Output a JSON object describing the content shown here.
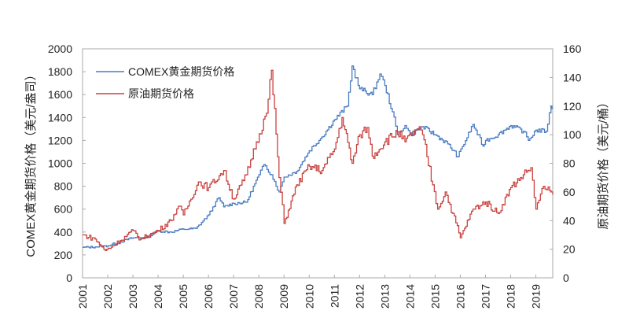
{
  "chart_data": {
    "type": "line",
    "xlabel": "",
    "y_left_label": "COMEX黄金期货价格（美元/盎司）",
    "y_right_label": "原油期货价格（美元/桶）",
    "x_ticks": [
      "2001",
      "2002",
      "2003",
      "2004",
      "2005",
      "2006",
      "2007",
      "2008",
      "2009",
      "2010",
      "2011",
      "2012",
      "2013",
      "2014",
      "2015",
      "2016",
      "2017",
      "2018",
      "2019"
    ],
    "xlim": [
      2001,
      2019.67
    ],
    "y_left_lim": [
      0,
      2000
    ],
    "y_left_ticks": [
      "0",
      "200",
      "400",
      "600",
      "800",
      "1000",
      "1200",
      "1400",
      "1600",
      "1800",
      "2000"
    ],
    "y_right_lim": [
      0,
      160
    ],
    "y_right_ticks": [
      "0",
      "20",
      "40",
      "60",
      "80",
      "100",
      "120",
      "140",
      "160"
    ],
    "legend_position": "top-left",
    "grid": false,
    "series": [
      {
        "name": "COMEX黄金期货价格",
        "axis": "left",
        "color": "#4a7cc1",
        "x": [
          2001.0,
          2001.5,
          2002.0,
          2002.5,
          2003.0,
          2003.5,
          2004.0,
          2004.5,
          2005.0,
          2005.5,
          2006.0,
          2006.4,
          2006.6,
          2007.0,
          2007.5,
          2008.0,
          2008.2,
          2008.5,
          2008.8,
          2009.0,
          2009.5,
          2010.0,
          2010.5,
          2011.0,
          2011.5,
          2011.7,
          2012.0,
          2012.5,
          2012.8,
          2013.0,
          2013.3,
          2013.5,
          2013.8,
          2014.0,
          2014.5,
          2015.0,
          2015.5,
          2015.9,
          2016.5,
          2016.9,
          2017.0,
          2017.5,
          2018.0,
          2018.5,
          2018.7,
          2019.0,
          2019.4,
          2019.6,
          2019.67
        ],
        "y": [
          265,
          270,
          280,
          315,
          350,
          350,
          410,
          400,
          425,
          430,
          550,
          700,
          620,
          650,
          660,
          900,
          990,
          900,
          750,
          880,
          930,
          1110,
          1230,
          1380,
          1500,
          1850,
          1650,
          1600,
          1780,
          1680,
          1450,
          1250,
          1330,
          1250,
          1320,
          1250,
          1170,
          1060,
          1340,
          1150,
          1200,
          1250,
          1330,
          1280,
          1200,
          1290,
          1280,
          1500,
          1480
        ]
      },
      {
        "name": "原油期货价格",
        "axis": "right",
        "color": "#c8423f",
        "x": [
          2001.0,
          2001.5,
          2001.9,
          2002.5,
          2003.0,
          2003.3,
          2004.0,
          2004.5,
          2004.8,
          2005.0,
          2005.6,
          2006.0,
          2006.6,
          2007.0,
          2007.5,
          2007.9,
          2008.3,
          2008.5,
          2008.8,
          2009.0,
          2009.5,
          2010.0,
          2010.5,
          2011.0,
          2011.3,
          2011.7,
          2012.0,
          2012.3,
          2012.5,
          2013.0,
          2013.5,
          2013.8,
          2014.3,
          2014.5,
          2014.9,
          2015.1,
          2015.4,
          2015.7,
          2016.0,
          2016.5,
          2017.0,
          2017.5,
          2018.0,
          2018.5,
          2018.8,
          2019.0,
          2019.3,
          2019.67
        ],
        "y": [
          30,
          27,
          19,
          26,
          33,
          27,
          33,
          40,
          50,
          44,
          67,
          63,
          75,
          55,
          72,
          95,
          115,
          145,
          70,
          38,
          65,
          78,
          75,
          90,
          112,
          80,
          100,
          105,
          85,
          95,
          102,
          95,
          104,
          100,
          65,
          48,
          60,
          45,
          28,
          48,
          53,
          45,
          63,
          72,
          77,
          48,
          64,
          58
        ]
      }
    ]
  }
}
